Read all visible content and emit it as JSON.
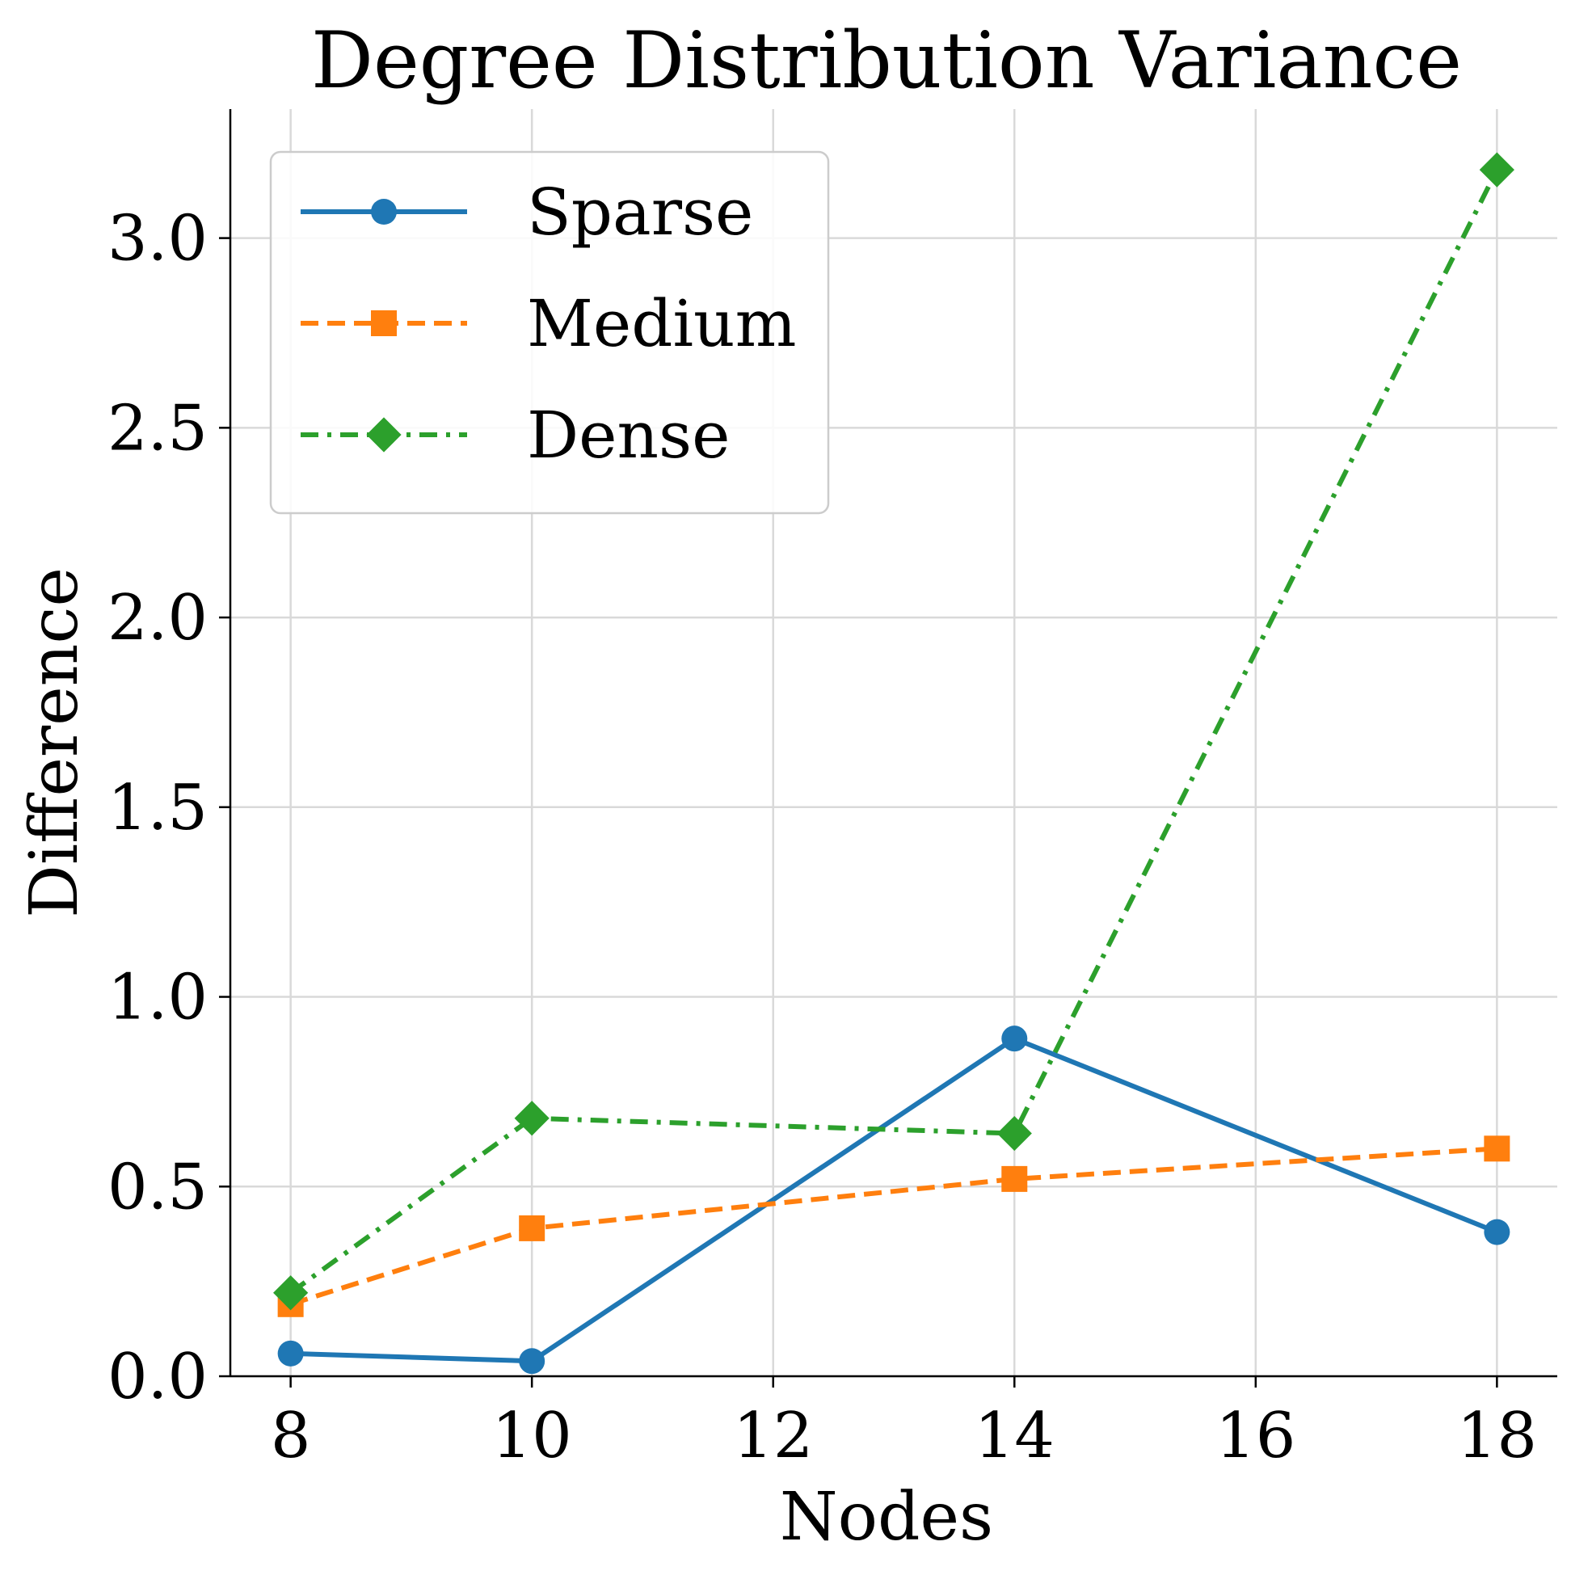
{
  "chart_data": {
    "type": "line",
    "title": "Degree Distribution Variance",
    "xlabel": "Nodes",
    "ylabel": "Difference",
    "x": [
      8,
      10,
      14,
      18
    ],
    "xticks": [
      "8",
      "10",
      "12",
      "14",
      "16",
      "18"
    ],
    "yticks": [
      "0.0",
      "0.5",
      "1.0",
      "1.5",
      "2.0",
      "2.5",
      "3.0"
    ],
    "xlim": [
      7.5,
      18.5
    ],
    "ylim": [
      0.0,
      3.34
    ],
    "grid": true,
    "legend_position": "upper-left",
    "series": [
      {
        "name": "Sparse",
        "values": [
          0.06,
          0.04,
          0.89,
          0.38
        ],
        "color": "#1f77b4",
        "marker": "circle",
        "linestyle": "solid"
      },
      {
        "name": "Medium",
        "values": [
          0.19,
          0.39,
          0.52,
          0.6
        ],
        "color": "#ff7f0e",
        "marker": "square",
        "linestyle": "dashed"
      },
      {
        "name": "Dense",
        "values": [
          0.22,
          0.68,
          0.64,
          3.18
        ],
        "color": "#2ca02c",
        "marker": "diamond",
        "linestyle": "dashdot"
      }
    ]
  }
}
